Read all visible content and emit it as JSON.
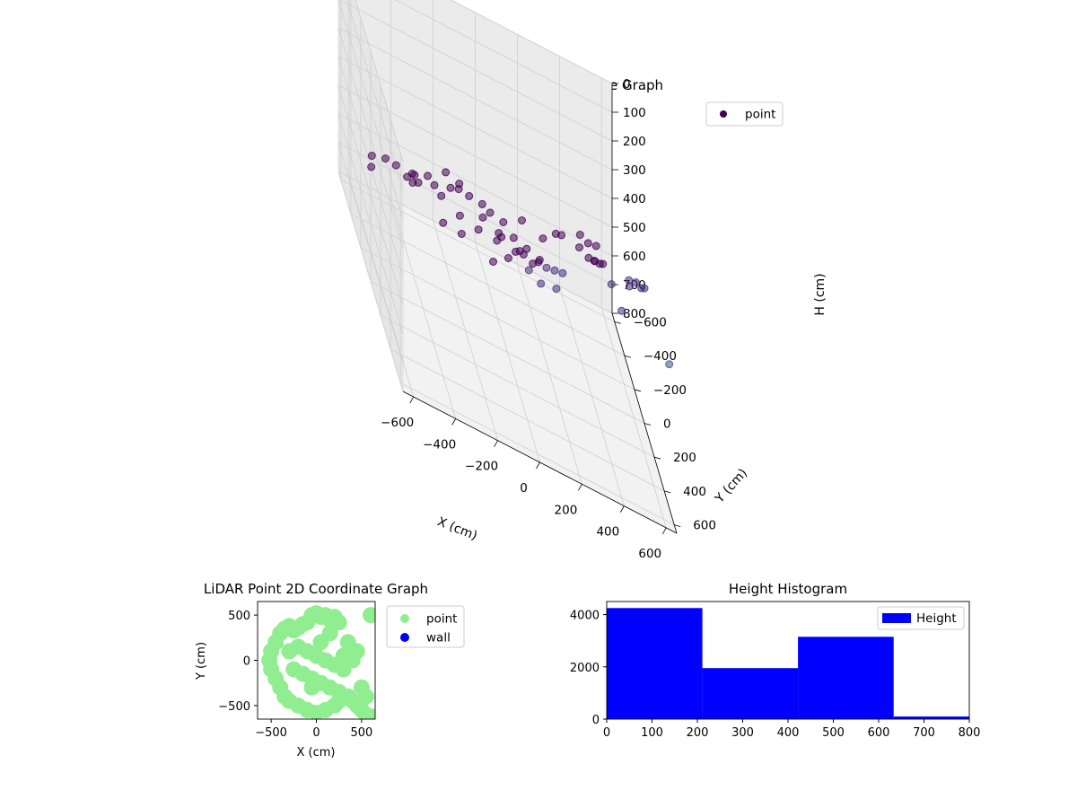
{
  "chart_data": [
    {
      "type": "scatter",
      "dimensions": 3,
      "title": "LiDAR Point 3D Coordinate Graph",
      "xlabel": "X (cm)",
      "ylabel": "Y (cm)",
      "zlabel": "H (cm)",
      "xlim": [
        -650,
        650
      ],
      "ylim": [
        -650,
        650
      ],
      "zlim": [
        800,
        0
      ],
      "xticks": [
        -600,
        -400,
        -200,
        0,
        200,
        400,
        600
      ],
      "yticks": [
        -600,
        -400,
        -200,
        0,
        200,
        400,
        600
      ],
      "zticks": [
        0,
        100,
        200,
        300,
        400,
        500,
        600,
        700,
        800
      ],
      "grid": true,
      "legend": "top-right",
      "colormap": "viridis",
      "series": [
        {
          "name": "point",
          "color": "#440154",
          "points": [
            [
              -400,
              450,
              60
            ],
            [
              -350,
              500,
              70
            ],
            [
              -250,
              550,
              55
            ],
            [
              -150,
              550,
              80
            ],
            [
              -50,
              500,
              65
            ],
            [
              50,
              500,
              90
            ],
            [
              150,
              450,
              70
            ],
            [
              250,
              400,
              60
            ],
            [
              300,
              350,
              100
            ],
            [
              350,
              300,
              120
            ],
            [
              -450,
              300,
              180
            ],
            [
              -500,
              200,
              250
            ],
            [
              -500,
              100,
              320
            ],
            [
              -450,
              0,
              380
            ],
            [
              -400,
              -100,
              420
            ],
            [
              -300,
              -200,
              450
            ],
            [
              -200,
              -300,
              480
            ],
            [
              -100,
              -350,
              500
            ],
            [
              0,
              -350,
              520
            ],
            [
              100,
              -300,
              540
            ],
            [
              150,
              -250,
              530
            ],
            [
              200,
              -200,
              520
            ],
            [
              -300,
              300,
              150
            ],
            [
              -200,
              350,
              200
            ],
            [
              -100,
              300,
              260
            ],
            [
              0,
              250,
              300
            ],
            [
              100,
              200,
              330
            ],
            [
              150,
              150,
              360
            ],
            [
              200,
              100,
              380
            ],
            [
              250,
              50,
              400
            ],
            [
              -350,
              150,
              300
            ],
            [
              -250,
              100,
              360
            ],
            [
              -150,
              50,
              400
            ],
            [
              -50,
              0,
              430
            ],
            [
              50,
              -50,
              460
            ],
            [
              100,
              -100,
              480
            ],
            [
              350,
              150,
              250
            ],
            [
              400,
              50,
              300
            ],
            [
              450,
              -50,
              350
            ],
            [
              450,
              -150,
              400
            ],
            [
              400,
              -250,
              430
            ],
            [
              550,
              250,
              200
            ],
            [
              600,
              150,
              260
            ],
            [
              650,
              0,
              330
            ],
            [
              600,
              -100,
              380
            ],
            [
              500,
              -200,
              420
            ],
            [
              300,
              -300,
              450
            ],
            [
              -600,
              300,
              200
            ],
            [
              -600,
              -200,
              500
            ],
            [
              -550,
              -400,
              560
            ],
            [
              -450,
              -550,
              620
            ],
            [
              -300,
              -600,
              650
            ],
            [
              100,
              -600,
              700
            ],
            [
              250,
              -550,
              720
            ],
            [
              350,
              -500,
              740
            ],
            [
              600,
              -450,
              600
            ],
            [
              650,
              -300,
              500
            ],
            [
              650,
              500,
              300
            ],
            [
              400,
              600,
              150
            ],
            [
              50,
              -500,
              760
            ],
            [
              150,
              -620,
              780
            ],
            [
              250,
              -630,
              790
            ],
            [
              300,
              -600,
              800
            ],
            [
              -100,
              -500,
              720
            ],
            [
              -200,
              -450,
              690
            ]
          ]
        }
      ]
    },
    {
      "type": "scatter",
      "title": "LiDAR Point 2D Coordinate Graph",
      "xlabel": "X (cm)",
      "ylabel": "Y (cm)",
      "xlim": [
        -650,
        650
      ],
      "ylim": [
        -650,
        650
      ],
      "xticks": [
        -500,
        0,
        500
      ],
      "yticks": [
        -500,
        0,
        500
      ],
      "legend": "outside-right",
      "series": [
        {
          "name": "point",
          "color": "#90ee90",
          "points": [
            [
              -400,
              300
            ],
            [
              -350,
              350
            ],
            [
              -300,
              380
            ],
            [
              -250,
              330
            ],
            [
              -200,
              360
            ],
            [
              -150,
              400
            ],
            [
              -100,
              420
            ],
            [
              -50,
              500
            ],
            [
              0,
              520
            ],
            [
              50,
              480
            ],
            [
              100,
              500
            ],
            [
              150,
              450
            ],
            [
              200,
              480
            ],
            [
              250,
              420
            ],
            [
              -450,
              200
            ],
            [
              -500,
              100
            ],
            [
              -520,
              0
            ],
            [
              -500,
              -100
            ],
            [
              -450,
              -200
            ],
            [
              -400,
              -300
            ],
            [
              -350,
              -400
            ],
            [
              -300,
              -450
            ],
            [
              -200,
              -500
            ],
            [
              -100,
              -550
            ],
            [
              0,
              -580
            ],
            [
              100,
              -550
            ],
            [
              200,
              -500
            ],
            [
              250,
              -450
            ],
            [
              -300,
              100
            ],
            [
              -200,
              150
            ],
            [
              -100,
              100
            ],
            [
              0,
              50
            ],
            [
              100,
              0
            ],
            [
              200,
              -50
            ],
            [
              300,
              -100
            ],
            [
              -250,
              -100
            ],
            [
              -150,
              -150
            ],
            [
              -50,
              -200
            ],
            [
              50,
              -250
            ],
            [
              150,
              -300
            ],
            [
              250,
              -350
            ],
            [
              350,
              -400
            ],
            [
              400,
              -450
            ],
            [
              450,
              -500
            ],
            [
              500,
              -550
            ],
            [
              550,
              -600
            ],
            [
              600,
              -620
            ],
            [
              350,
              200
            ],
            [
              450,
              100
            ],
            [
              400,
              0
            ],
            [
              300,
              50
            ],
            [
              500,
              -300
            ],
            [
              550,
              -400
            ],
            [
              -50,
              -300
            ],
            [
              50,
              200
            ],
            [
              150,
              300
            ],
            [
              600,
              500
            ]
          ]
        },
        {
          "name": "wall",
          "color": "#0000ff",
          "points": []
        }
      ]
    },
    {
      "type": "bar",
      "title": "Height Histogram",
      "xlim": [
        0,
        800
      ],
      "ylim": [
        0,
        4500
      ],
      "xticks": [
        0,
        100,
        200,
        300,
        400,
        500,
        600,
        700,
        800
      ],
      "yticks": [
        0,
        2000,
        4000
      ],
      "legend": "top-right",
      "series": [
        {
          "name": "Height",
          "color": "#0000ff",
          "bins": [
            [
              0,
              211
            ],
            [
              211,
              422
            ],
            [
              422,
              633
            ],
            [
              633,
              844
            ]
          ],
          "values": [
            4250,
            1950,
            3150,
            100
          ]
        }
      ]
    }
  ]
}
